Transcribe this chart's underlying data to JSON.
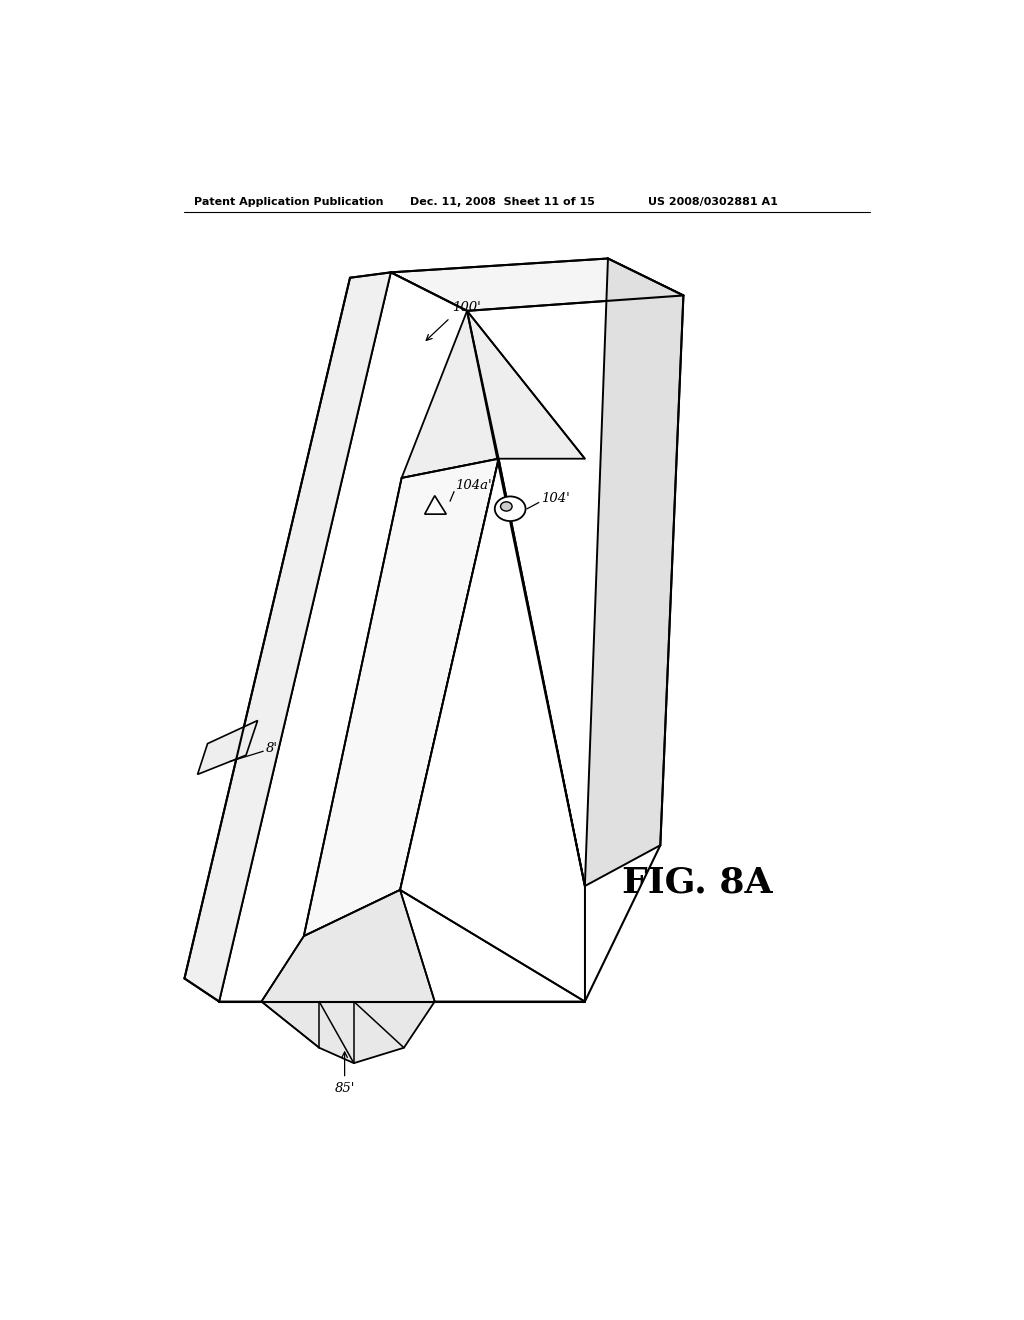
{
  "bg_color": "#ffffff",
  "line_color": "#000000",
  "header_text": "Patent Application Publication",
  "header_date": "Dec. 11, 2008  Sheet 11 of 15",
  "header_patent": "US 2008/0302881 A1",
  "fig_label": "FIG. 8A",
  "label_100p": "100'",
  "label_104ap": "104a'",
  "label_104p": "104'",
  "label_8p": "8'",
  "label_85p": "85'",
  "lw_main": 1.4,
  "lw_thin": 1.1
}
